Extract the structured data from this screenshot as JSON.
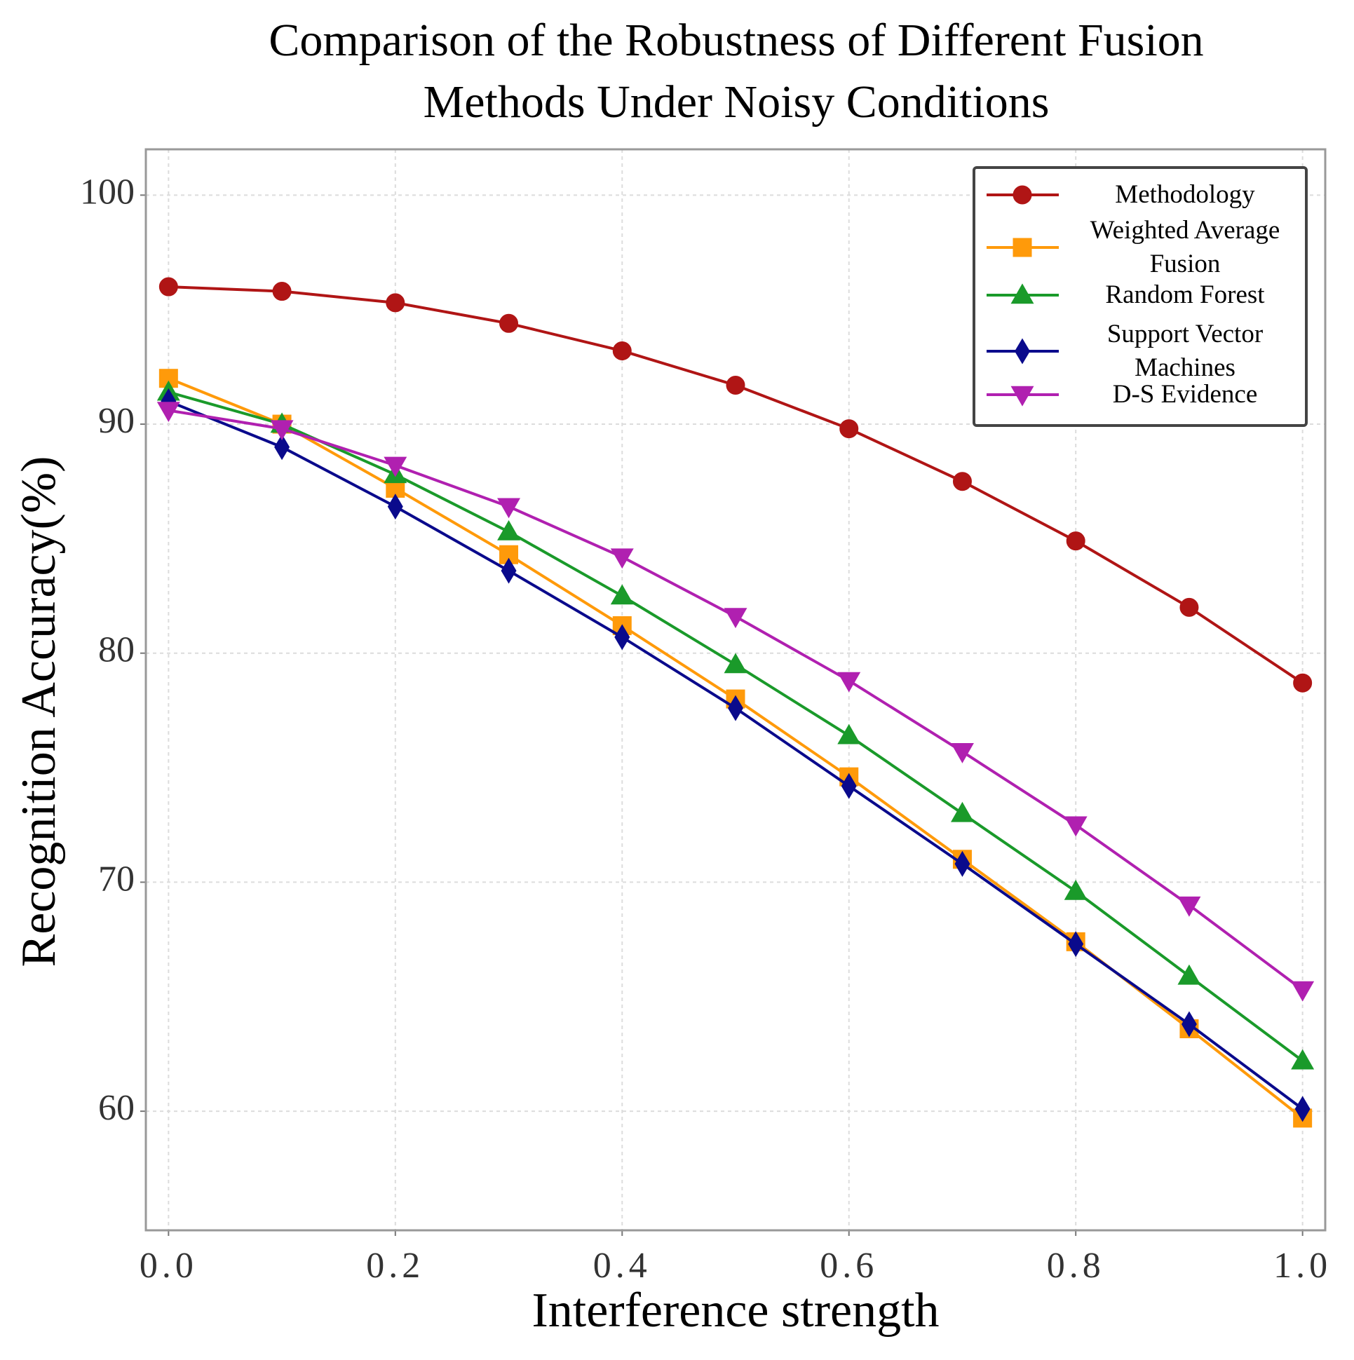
{
  "chart_data": {
    "type": "line",
    "title": "Comparison of the Robustness of Different Fusion Methods Under Noisy Conditions",
    "x_label": "Interference strength",
    "y_label": "Recognition Accuracy(%)",
    "x": [
      0,
      0.1,
      0.2,
      0.3,
      0.4,
      0.5,
      0.6,
      0.7,
      0.8,
      0.9,
      1
    ],
    "series": [
      {
        "name": "Methodology",
        "color": "#b01515",
        "marker": "circle",
        "values": [
          96.0,
          95.8,
          95.3,
          94.4,
          93.2,
          91.7,
          89.8,
          87.5,
          84.9,
          82.0,
          78.7
        ]
      },
      {
        "name": "Weighted Average Fusion",
        "color": "#ff9a0a",
        "marker": "square",
        "values": [
          92.0,
          90.0,
          87.2,
          84.3,
          81.2,
          78.0,
          74.6,
          71.0,
          67.4,
          63.6,
          59.7
        ]
      },
      {
        "name": "Random Forest",
        "color": "#1a9a2a",
        "marker": "triangle-up",
        "values": [
          91.4,
          90.0,
          87.8,
          85.3,
          82.5,
          79.5,
          76.4,
          73.0,
          69.6,
          65.9,
          62.2
        ]
      },
      {
        "name": "Support Vector Machines",
        "color": "#0a0a8c",
        "marker": "diamond",
        "values": [
          91.0,
          89.0,
          86.4,
          83.6,
          80.7,
          77.6,
          74.2,
          70.8,
          67.3,
          63.8,
          60.1
        ]
      },
      {
        "name": "D-S Evidence",
        "color": "#b020b0",
        "marker": "triangle-down",
        "values": [
          90.6,
          89.8,
          88.2,
          86.4,
          84.2,
          81.6,
          78.8,
          75.7,
          72.5,
          69.0,
          65.3
        ]
      }
    ],
    "xlim": [
      -0.02,
      1.02
    ],
    "xticks": [
      {
        "value": 0,
        "label": "0.0"
      },
      0.2,
      0.4,
      0.6,
      0.8,
      {
        "value": 1,
        "label": "1.0"
      }
    ],
    "ylim": [
      54.8,
      102.0
    ],
    "yticks": [
      60,
      70,
      80,
      90,
      100
    ],
    "grid": true,
    "legend": "upper right"
  }
}
